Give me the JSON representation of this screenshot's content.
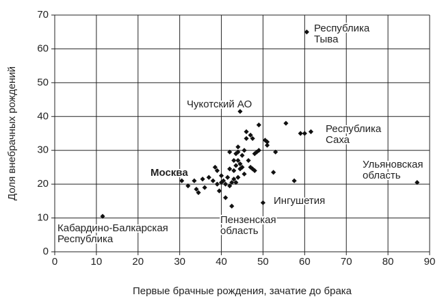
{
  "chart_data": {
    "type": "scatter",
    "x_label": "Первые брачные рождения, зачатие до брака",
    "y_label": "Доля внебрачных рождений",
    "xlim": [
      0,
      90
    ],
    "xticks": [
      0,
      10,
      20,
      30,
      40,
      50,
      60,
      70,
      80,
      90
    ],
    "ylim": [
      0,
      70
    ],
    "yticks": [
      0,
      10,
      20,
      30,
      40,
      50,
      60,
      70
    ],
    "grid": true,
    "color": "#111111",
    "x": [
      60.5,
      44.5,
      61.5,
      59,
      60,
      87,
      50,
      11.5,
      30.5,
      42.5,
      32,
      33.5,
      34,
      34.5,
      35.5,
      36,
      37,
      38,
      38.5,
      39,
      39,
      39.5,
      40,
      40,
      40.5,
      41,
      41,
      41.5,
      42,
      42,
      42,
      42.5,
      43,
      43,
      43,
      43.5,
      43.5,
      44,
      44,
      44,
      44.5,
      44.5,
      45,
      45,
      45.5,
      45.5,
      46,
      46,
      46.5,
      47,
      47,
      47.5,
      47.5,
      48,
      48,
      48.5,
      49,
      49,
      50.5,
      51,
      51,
      52.5,
      53,
      55.5,
      57.5,
      43.5,
      44
    ],
    "y": [
      65,
      41.5,
      35.5,
      35,
      35,
      20.5,
      14.5,
      10.5,
      21,
      13.5,
      19.5,
      21,
      18.5,
      17.5,
      21.5,
      19,
      22,
      21,
      25,
      20,
      24,
      18,
      20.5,
      22.5,
      21,
      16,
      20,
      22,
      29.5,
      19.5,
      24.5,
      20.5,
      27,
      21.5,
      24,
      29,
      25.5,
      31,
      27,
      22,
      26,
      24.5,
      28.5,
      25,
      23,
      30,
      33.5,
      35.5,
      27,
      25,
      34.5,
      33.5,
      24.5,
      29,
      24,
      29.5,
      37.5,
      30,
      33,
      31.5,
      32.5,
      23.5,
      29.5,
      38,
      21,
      20.5,
      29.5
    ],
    "annotations": [
      {
        "lines": [
          "Республика",
          "Тыва"
        ]
      },
      {
        "lines": [
          "Чукотский АО"
        ]
      },
      {
        "lines": [
          "Республика",
          "Саха"
        ]
      },
      {
        "lines": [
          "Ульяновская",
          "область"
        ]
      },
      {
        "lines": [
          "Москва"
        ],
        "bold": true
      },
      {
        "lines": [
          "Ингушетия"
        ]
      },
      {
        "lines": [
          "Пензенская",
          "область"
        ]
      },
      {
        "lines": [
          "Кабардино-Балкарская",
          "Республика"
        ]
      }
    ]
  }
}
